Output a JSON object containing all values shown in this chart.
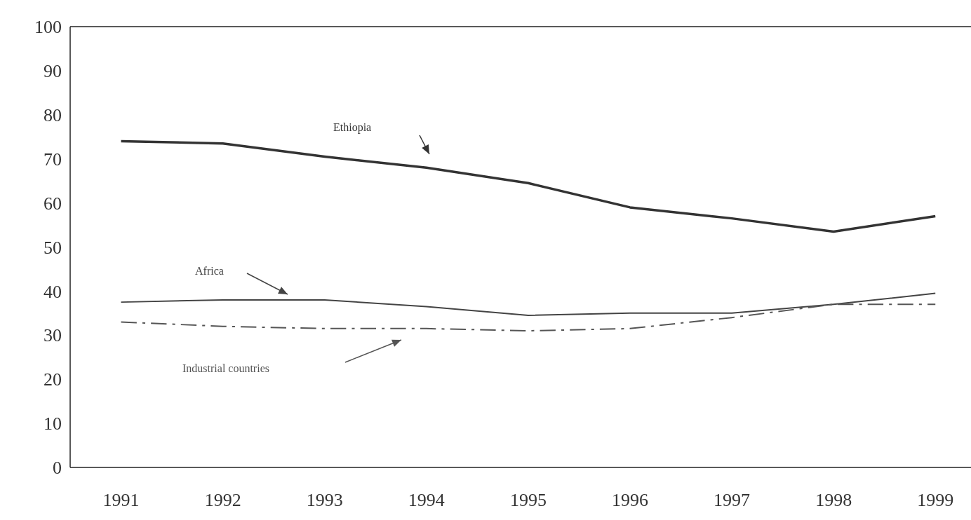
{
  "chart_data": {
    "type": "line",
    "x": [
      1991,
      1992,
      1993,
      1994,
      1995,
      1996,
      1997,
      1998,
      1999
    ],
    "series": [
      {
        "name": "Ethiopia",
        "color": "#333333",
        "line_style": "solid",
        "values": [
          74,
          73.5,
          70.5,
          68,
          64.5,
          59,
          56.5,
          53.5,
          57
        ]
      },
      {
        "name": "Africa",
        "color": "#444444",
        "line_style": "solid",
        "values": [
          37.5,
          38,
          38,
          36.5,
          34.5,
          35,
          35,
          37,
          39.5
        ]
      },
      {
        "name": "Industrial countries",
        "color": "#555555",
        "line_style": "dashed",
        "values": [
          33,
          32,
          31.5,
          31.5,
          31,
          31.5,
          34,
          37,
          37
        ]
      }
    ],
    "xlim": [
      1990.5,
      1999.35
    ],
    "xticks": [
      1991,
      1992,
      1993,
      1994,
      1995,
      1996,
      1997,
      1998,
      1999
    ],
    "ylim": [
      0,
      100
    ],
    "yticks": [
      0,
      10,
      20,
      30,
      40,
      50,
      60,
      70,
      80,
      90,
      100
    ],
    "grid": false,
    "marker": "none"
  }
}
